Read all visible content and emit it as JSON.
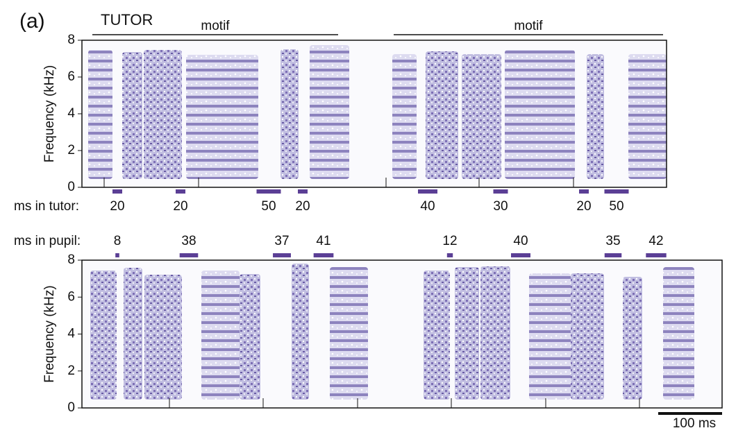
{
  "panel_label": "(a)",
  "chart_data": [
    {
      "type": "spectrogram",
      "title": "TUTOR",
      "motif_labels": [
        "motif",
        "motif"
      ],
      "ylabel": "Frequency (kHz)",
      "ylim": [
        0,
        8
      ],
      "yticks": [
        0,
        2,
        4,
        6,
        8
      ],
      "gap_row_label": "ms in tutor:",
      "gaps": [
        20,
        20,
        50,
        20,
        40,
        30,
        20,
        50
      ]
    },
    {
      "type": "spectrogram",
      "ylabel": "Frequency (kHz)",
      "ylim": [
        0,
        8
      ],
      "yticks": [
        0,
        2,
        4,
        6,
        8
      ],
      "gap_row_label": "ms in pupil:",
      "gaps": [
        8,
        38,
        37,
        41,
        12,
        40,
        35,
        42
      ]
    }
  ],
  "scale_bar": "100 ms"
}
